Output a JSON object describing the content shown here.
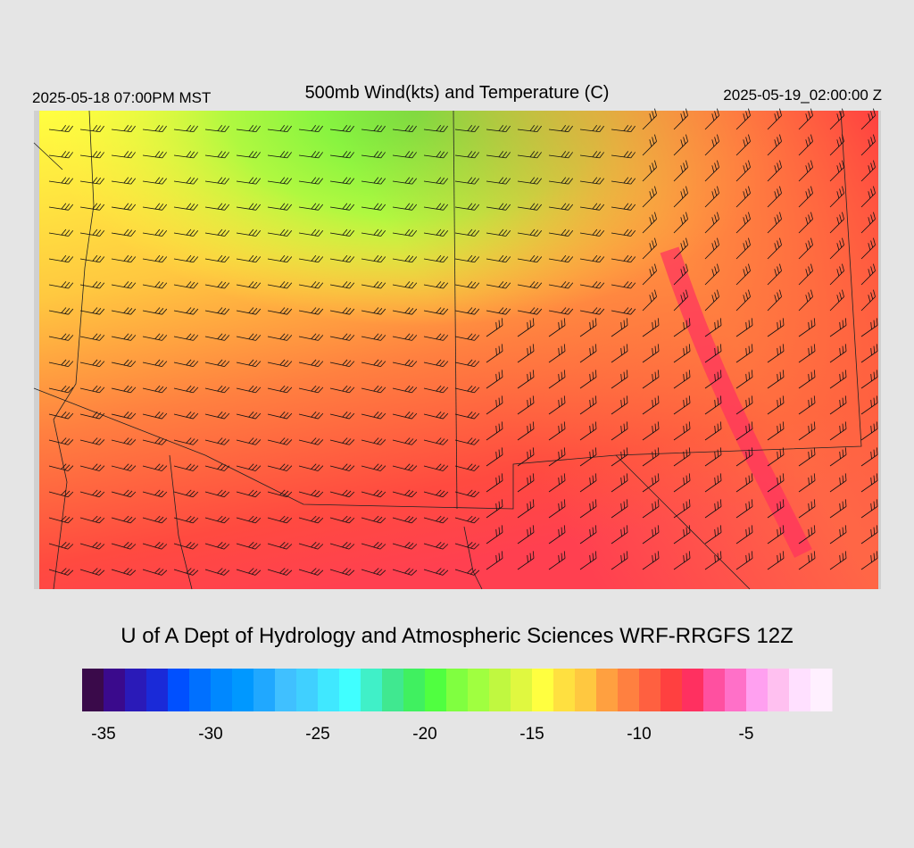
{
  "header": {
    "left": "2025-05-18 07:00PM MST",
    "title": "500mb Wind(kts) and Temperature (C)",
    "right": "2025-05-19_02:00:00 Z"
  },
  "credit": "U of A Dept of Hydrology and Atmospheric Sciences WRF-RRGFS 12Z",
  "colorbar": {
    "range": [
      -36,
      -1
    ],
    "ticks": [
      -35,
      -30,
      -25,
      -20,
      -15,
      -10,
      -5
    ],
    "colors": [
      "#3a0a4a",
      "#3a0a8c",
      "#2a1ab8",
      "#1a2ad8",
      "#0050ff",
      "#0070ff",
      "#0088ff",
      "#0098ff",
      "#20a8ff",
      "#40c0ff",
      "#40d0ff",
      "#40e8ff",
      "#40ffff",
      "#40f0c8",
      "#40e890",
      "#40f060",
      "#50ff40",
      "#80ff40",
      "#a0ff40",
      "#c0f840",
      "#e0f840",
      "#ffff40",
      "#ffe040",
      "#ffc840",
      "#ffa040",
      "#ff8040",
      "#ff6040",
      "#ff4040",
      "#ff3060",
      "#ff50a0",
      "#ff70c8",
      "#ffa0f0",
      "#ffc0f0",
      "#ffe0ff",
      "#fff0ff"
    ]
  }
}
